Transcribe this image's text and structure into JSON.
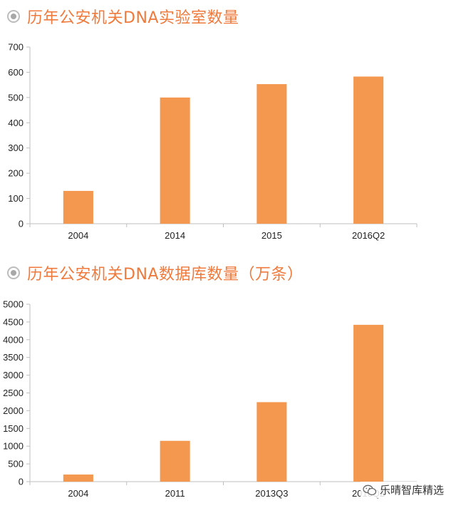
{
  "chart_data": [
    {
      "type": "bar",
      "title": "历年公安机关DNA实验室数量",
      "categories": [
        "2004",
        "2014",
        "2015",
        "2016Q2"
      ],
      "values": [
        130,
        500,
        553,
        583
      ],
      "ylim": [
        0,
        700
      ],
      "yticks": [
        "0",
        "100",
        "200",
        "300",
        "400",
        "500",
        "600",
        "700"
      ],
      "grid": false,
      "bar_color": "#f4984f"
    },
    {
      "type": "bar",
      "title": "历年公安机关DNA数据库数量（万条）",
      "categories": [
        "2004",
        "2011",
        "2013Q3",
        "2016Q2"
      ],
      "values": [
        200,
        1150,
        2240,
        4420
      ],
      "ylim": [
        0,
        5000
      ],
      "yticks": [
        "0",
        "500",
        "1000",
        "1500",
        "2000",
        "2500",
        "3000",
        "3500",
        "4000",
        "4500",
        "5000"
      ],
      "grid": false,
      "bar_color": "#f4984f"
    }
  ],
  "watermark": {
    "icon": "wechat-icon",
    "text": "乐晴智库精选"
  }
}
